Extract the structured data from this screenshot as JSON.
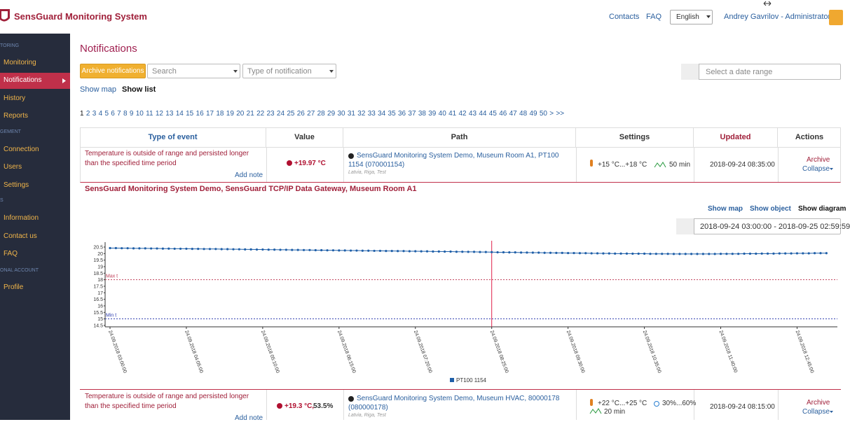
{
  "header": {
    "title": "SensGuard Monitoring System",
    "links": [
      "Contacts",
      "FAQ"
    ],
    "language": "English",
    "user": "Andrey Gavrilov - Administrator"
  },
  "sidebar": {
    "items": [
      {
        "section": "TORING"
      },
      {
        "label": "Monitoring"
      },
      {
        "label": "Notifications"
      },
      {
        "label": "History"
      },
      {
        "label": "Reports"
      },
      {
        "section": "GEMENT"
      },
      {
        "label": "Connection"
      },
      {
        "label": "Users"
      },
      {
        "label": "Settings"
      },
      {
        "section": "S"
      },
      {
        "label": "Information"
      },
      {
        "label": "Contact us"
      },
      {
        "label": "FAQ"
      },
      {
        "section": "ONAL ACCOUNT"
      },
      {
        "label": "Profile"
      }
    ]
  },
  "page": {
    "title": "Notifications",
    "archive_button": "Archive notifications",
    "search": "Search",
    "type_filter": "Type of notification",
    "date_range": "Select a date range",
    "show_map": "Show map",
    "show_list": "Show list",
    "pagination": [
      1,
      2,
      3,
      4,
      5,
      6,
      7,
      8,
      9,
      10,
      11,
      12,
      13,
      14,
      15,
      16,
      17,
      18,
      19,
      20,
      21,
      22,
      23,
      24,
      25,
      26,
      27,
      28,
      29,
      30,
      31,
      32,
      33,
      34,
      35,
      36,
      37,
      38,
      39,
      40,
      41,
      42,
      43,
      44,
      45,
      46,
      47,
      48,
      49,
      50,
      ">",
      ">>"
    ]
  },
  "table": {
    "columns": [
      "Type of event",
      "Value",
      "Path",
      "Settings",
      "Updated",
      "Actions"
    ],
    "rows": [
      {
        "event": "Temperature is outside of range and persisted longer than the specified time period",
        "note": "Add note",
        "value": "+19.97 °C",
        "path": "SensGuard Monitoring System Demo, Museum Room A1, PT100 1154 (070001154)",
        "location": "Latvia, Riga, Test",
        "range": "+15 °C...+18 °C",
        "delay": "50 min",
        "updated": "2018-09-24 08:35:00",
        "archive": "Archive",
        "collapse": "Collapse"
      },
      {
        "event": "Temperature is outside of range and persisted longer than the specified time period",
        "note": "Add note",
        "value": "+19.3 °C,",
        "value2": "53.5%",
        "path": "SensGuard Monitoring System Demo, Museum HVAC, 80000178 (080000178)",
        "location": "Latvia, Riga, Test",
        "range": "+22 °C...+25 °C",
        "humidity": "30%...60%",
        "delay": "20 min",
        "updated": "2018-09-24 08:15:00",
        "archive": "Archive",
        "collapse": "Collapse"
      }
    ]
  },
  "detail": {
    "title": "SensGuard Monitoring System Demo, SensGuard TCP/IP Data Gateway, Museum Room A1",
    "links": [
      "Show map",
      "Show object",
      "Show diagram"
    ],
    "date_range": "2018-09-24 03:00:00 - 2018-09-25 02:59:59"
  },
  "chart_data": {
    "type": "line",
    "ylim": [
      14.5,
      20.5
    ],
    "yticks": [
      14.5,
      15,
      15.5,
      16,
      16.5,
      17,
      17.5,
      18,
      18.5,
      19,
      19.5,
      20,
      20.5
    ],
    "xticks": [
      {
        "value": 0,
        "label": "24.09.2018 03:00:00"
      },
      {
        "value": 13,
        "label": "24.09.2018 04:05:00"
      },
      {
        "value": 26,
        "label": "24.09.2018 05:10:00"
      },
      {
        "value": 39,
        "label": "24.09.2018 06:15:00"
      },
      {
        "value": 52,
        "label": "24.09.2018 07:20:00"
      },
      {
        "value": 65,
        "label": "24.09.2018 08:25:00"
      },
      {
        "value": 78,
        "label": "24.09.2018 09:30:00"
      },
      {
        "value": 91,
        "label": "24.09.2018 10:35:00"
      },
      {
        "value": 104,
        "label": "24.09.2018 11:40:00"
      },
      {
        "value": 117,
        "label": "24.09.2018 12:45:00"
      }
    ],
    "max_line": {
      "label": "Max t",
      "value": 18,
      "color": "#c0405a"
    },
    "min_line": {
      "label": "Min t",
      "value": 15,
      "color": "#3040b0"
    },
    "cursor": {
      "value": 65,
      "color": "#e0204a"
    },
    "series": [
      {
        "name": "PT100 1154",
        "color": "#1f5fa8",
        "values": [
          20.42,
          20.42,
          20.41,
          20.41,
          20.4,
          20.4,
          20.4,
          20.39,
          20.39,
          20.38,
          20.38,
          20.37,
          20.37,
          20.37,
          20.36,
          20.36,
          20.35,
          20.35,
          20.35,
          20.34,
          20.34,
          20.33,
          20.33,
          20.32,
          20.32,
          20.31,
          20.31,
          20.3,
          20.3,
          20.29,
          20.29,
          20.28,
          20.28,
          20.27,
          20.27,
          20.26,
          20.26,
          20.25,
          20.25,
          20.24,
          20.24,
          20.23,
          20.23,
          20.22,
          20.22,
          20.21,
          20.21,
          20.2,
          20.2,
          20.19,
          20.19,
          20.18,
          20.18,
          20.17,
          20.17,
          20.16,
          20.16,
          20.15,
          20.15,
          20.14,
          20.14,
          20.13,
          20.13,
          20.12,
          20.12,
          20.11,
          20.1,
          20.1,
          20.09,
          20.09,
          20.08,
          20.08,
          20.07,
          20.07,
          20.06,
          20.06,
          20.05,
          20.05,
          20.04,
          20.04,
          20.03,
          20.03,
          20.02,
          20.02,
          20.01,
          20.01,
          20.0,
          20.0,
          20.0,
          19.99,
          19.99,
          19.99,
          19.98,
          19.98,
          19.98,
          19.98,
          19.97,
          19.97,
          19.97,
          19.97,
          19.97,
          19.97,
          19.97,
          19.97,
          19.98,
          19.98,
          19.98,
          19.98,
          19.99,
          19.99,
          19.99,
          20.0,
          20.0,
          20.0,
          20.01,
          20.01,
          20.01,
          20.02,
          20.02,
          20.02,
          20.03,
          20.03,
          20.03
        ]
      }
    ]
  }
}
